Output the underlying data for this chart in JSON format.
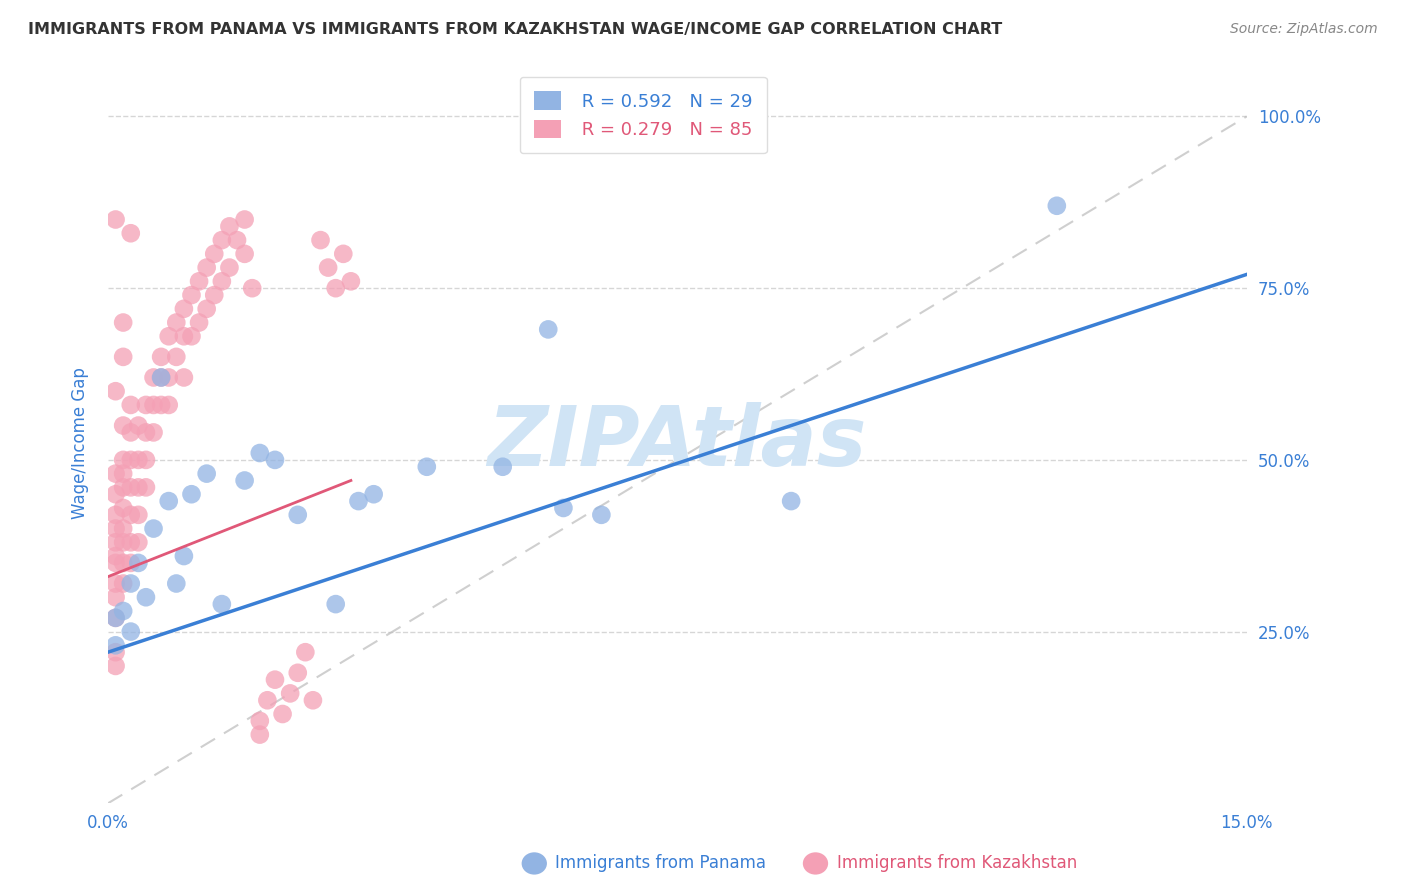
{
  "title": "IMMIGRANTS FROM PANAMA VS IMMIGRANTS FROM KAZAKHSTAN WAGE/INCOME GAP CORRELATION CHART",
  "source": "Source: ZipAtlas.com",
  "xlabel_panama": "Immigrants from Panama",
  "xlabel_kazakhstan": "Immigrants from Kazakhstan",
  "ylabel": "Wage/Income Gap",
  "xlim": [
    0.0,
    0.15
  ],
  "ylim": [
    0.0,
    1.05
  ],
  "xtick_positions": [
    0.0,
    0.03,
    0.06,
    0.09,
    0.12,
    0.15
  ],
  "xtick_labels": [
    "0.0%",
    "",
    "",
    "",
    "",
    "15.0%"
  ],
  "yticks": [
    0.25,
    0.5,
    0.75,
    1.0
  ],
  "ytick_labels": [
    "25.0%",
    "50.0%",
    "75.0%",
    "100.0%"
  ],
  "panama_color": "#92b4e3",
  "kazakhstan_color": "#f4a0b5",
  "panama_line_color": "#3a7fd5",
  "kazakhstan_line_color": "#e05878",
  "axis_color": "#3a7fd5",
  "title_color": "#333333",
  "source_color": "#888888",
  "watermark_text": "ZIPAtlas",
  "watermark_color": "#d0e4f5",
  "grid_color": "#cccccc",
  "ref_line_color": "#bbbbbb",
  "panama_R": 0.592,
  "panama_N": 29,
  "kazakhstan_R": 0.279,
  "kazakhstan_N": 85,
  "panama_line_x0": 0.0,
  "panama_line_y0": 0.22,
  "panama_line_x1": 0.15,
  "panama_line_y1": 0.77,
  "kazakhstan_line_x0": 0.0,
  "kazakhstan_line_y0": 0.33,
  "kazakhstan_line_x1": 0.032,
  "kazakhstan_line_y1": 0.47,
  "panama_x": [
    0.001,
    0.001,
    0.002,
    0.003,
    0.003,
    0.004,
    0.005,
    0.006,
    0.007,
    0.008,
    0.009,
    0.01,
    0.011,
    0.013,
    0.015,
    0.018,
    0.02,
    0.022,
    0.025,
    0.03,
    0.033,
    0.035,
    0.042,
    0.052,
    0.058,
    0.06,
    0.065,
    0.09,
    0.125
  ],
  "panama_y": [
    0.27,
    0.23,
    0.28,
    0.32,
    0.25,
    0.35,
    0.3,
    0.4,
    0.62,
    0.44,
    0.32,
    0.36,
    0.45,
    0.48,
    0.29,
    0.47,
    0.51,
    0.5,
    0.42,
    0.29,
    0.44,
    0.45,
    0.49,
    0.49,
    0.69,
    0.43,
    0.42,
    0.44,
    0.87
  ],
  "kazakhstan_x": [
    0.001,
    0.001,
    0.001,
    0.001,
    0.001,
    0.001,
    0.001,
    0.001,
    0.001,
    0.001,
    0.001,
    0.001,
    0.002,
    0.002,
    0.002,
    0.002,
    0.002,
    0.002,
    0.002,
    0.002,
    0.002,
    0.003,
    0.003,
    0.003,
    0.003,
    0.003,
    0.003,
    0.003,
    0.004,
    0.004,
    0.004,
    0.004,
    0.004,
    0.005,
    0.005,
    0.005,
    0.005,
    0.006,
    0.006,
    0.006,
    0.007,
    0.007,
    0.007,
    0.008,
    0.008,
    0.008,
    0.009,
    0.009,
    0.01,
    0.01,
    0.01,
    0.011,
    0.011,
    0.012,
    0.012,
    0.013,
    0.013,
    0.014,
    0.014,
    0.015,
    0.015,
    0.016,
    0.016,
    0.017,
    0.018,
    0.018,
    0.019,
    0.02,
    0.02,
    0.021,
    0.022,
    0.023,
    0.024,
    0.025,
    0.026,
    0.027,
    0.028,
    0.029,
    0.03,
    0.031,
    0.032,
    0.001,
    0.002,
    0.001,
    0.003,
    0.002
  ],
  "kazakhstan_y": [
    0.42,
    0.38,
    0.35,
    0.45,
    0.48,
    0.3,
    0.27,
    0.4,
    0.36,
    0.32,
    0.22,
    0.2,
    0.55,
    0.5,
    0.46,
    0.43,
    0.38,
    0.35,
    0.32,
    0.4,
    0.48,
    0.58,
    0.54,
    0.5,
    0.46,
    0.42,
    0.38,
    0.35,
    0.55,
    0.5,
    0.46,
    0.42,
    0.38,
    0.58,
    0.54,
    0.5,
    0.46,
    0.62,
    0.58,
    0.54,
    0.65,
    0.62,
    0.58,
    0.68,
    0.62,
    0.58,
    0.7,
    0.65,
    0.72,
    0.68,
    0.62,
    0.74,
    0.68,
    0.76,
    0.7,
    0.78,
    0.72,
    0.8,
    0.74,
    0.82,
    0.76,
    0.84,
    0.78,
    0.82,
    0.85,
    0.8,
    0.75,
    0.1,
    0.12,
    0.15,
    0.18,
    0.13,
    0.16,
    0.19,
    0.22,
    0.15,
    0.82,
    0.78,
    0.75,
    0.8,
    0.76,
    0.6,
    0.65,
    0.85,
    0.83,
    0.7
  ]
}
